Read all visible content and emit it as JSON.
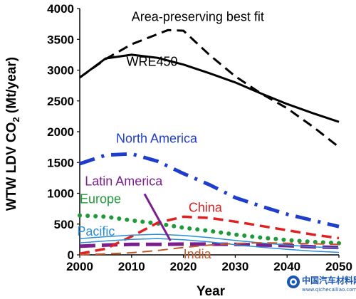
{
  "chart_data": {
    "type": "line",
    "xlabel": "Year",
    "ylabel": "WTW LDV CO",
    "ylabel_sub": "2",
    "ylabel_unit": " (Mt/year)",
    "xlim": [
      2000,
      2050
    ],
    "ylim": [
      0,
      4000
    ],
    "x_ticks": [
      2000,
      2010,
      2020,
      2030,
      2040,
      2050
    ],
    "y_ticks": [
      0,
      500,
      1000,
      1500,
      2000,
      2500,
      3000,
      3500,
      4000
    ],
    "grid": false,
    "legend": "none",
    "series": [
      {
        "name": "WRE450",
        "color": "#000000",
        "style": "solid",
        "width": 3,
        "x": [
          2000,
          2005,
          2010,
          2015,
          2020,
          2025,
          2030,
          2035,
          2040,
          2045,
          2050
        ],
        "y": [
          2880,
          3190,
          3250,
          3200,
          3090,
          2950,
          2800,
          2620,
          2450,
          2300,
          2160
        ],
        "label_x": 2009,
        "label_y": 3070
      },
      {
        "name": "Area-preserving best fit",
        "color": "#000000",
        "style": "dash",
        "width": 3,
        "x": [
          2000,
          2005,
          2010,
          2017,
          2020,
          2025,
          2030,
          2035,
          2040,
          2045,
          2050
        ],
        "y": [
          2880,
          3180,
          3420,
          3650,
          3640,
          3250,
          2900,
          2620,
          2380,
          2080,
          1750
        ],
        "label_x": 2010,
        "label_y": 3800
      },
      {
        "name": "North America",
        "color": "#1f3dcc",
        "style": "dashdot",
        "width": 5,
        "x": [
          2000,
          2005,
          2010,
          2015,
          2020,
          2025,
          2030,
          2035,
          2040,
          2045,
          2050
        ],
        "y": [
          1480,
          1620,
          1640,
          1520,
          1320,
          1140,
          930,
          790,
          660,
          560,
          460
        ],
        "label_x": 2007,
        "label_y": 1820
      },
      {
        "name": "Latin America",
        "color": "#7b1f8e",
        "style": "longdash",
        "width": 5,
        "x": [
          2000,
          2005,
          2010,
          2015,
          2020,
          2025,
          2030,
          2035,
          2040,
          2045,
          2050
        ],
        "y": [
          140,
          160,
          170,
          170,
          175,
          175,
          170,
          160,
          150,
          130,
          120
        ],
        "label_x": 2001,
        "label_y": 1130
      },
      {
        "name": "Europe",
        "color": "#1f9a3a",
        "style": "dot",
        "width": 6,
        "x": [
          2000,
          2005,
          2010,
          2015,
          2020,
          2025,
          2030,
          2035,
          2040,
          2045,
          2050
        ],
        "y": [
          640,
          620,
          560,
          510,
          440,
          390,
          330,
          280,
          240,
          210,
          190
        ],
        "label_x": 2000,
        "label_y": 840
      },
      {
        "name": "China",
        "color": "#e02020",
        "style": "dash",
        "width": 3.5,
        "x": [
          2000,
          2005,
          2010,
          2015,
          2020,
          2025,
          2030,
          2035,
          2040,
          2045,
          2050
        ],
        "y": [
          20,
          100,
          300,
          520,
          620,
          600,
          540,
          470,
          400,
          330,
          270
        ],
        "label_x": 2021,
        "label_y": 700
      },
      {
        "name": "Pacific",
        "color": "#2a8fd6",
        "style": "double",
        "width": 1.5,
        "x": [
          2000,
          2005,
          2010,
          2015,
          2020,
          2025,
          2030,
          2035,
          2040,
          2045,
          2050
        ],
        "y": [
          230,
          260,
          285,
          300,
          280,
          245,
          200,
          160,
          125,
          95,
          75
        ],
        "label_x": 1999.5,
        "label_y": 310
      },
      {
        "name": "India",
        "color": "#c05a2a",
        "style": "dash",
        "width": 2,
        "x": [
          2000,
          2005,
          2010,
          2015,
          2020,
          2025,
          2030,
          2035,
          2040,
          2045,
          2050
        ],
        "y": [
          5,
          15,
          35,
          70,
          120,
          160,
          185,
          195,
          190,
          180,
          170
        ],
        "label_x": 2020,
        "label_y": -60
      }
    ],
    "annotations": [
      {
        "type": "pointer",
        "color": "#7b1f8e",
        "from": [
          2012.5,
          990
        ],
        "to": [
          2017.5,
          230
        ]
      }
    ]
  },
  "watermark": {
    "logo_text": "中国汽车材料网",
    "url_text": "www.qichecailiao.com"
  }
}
